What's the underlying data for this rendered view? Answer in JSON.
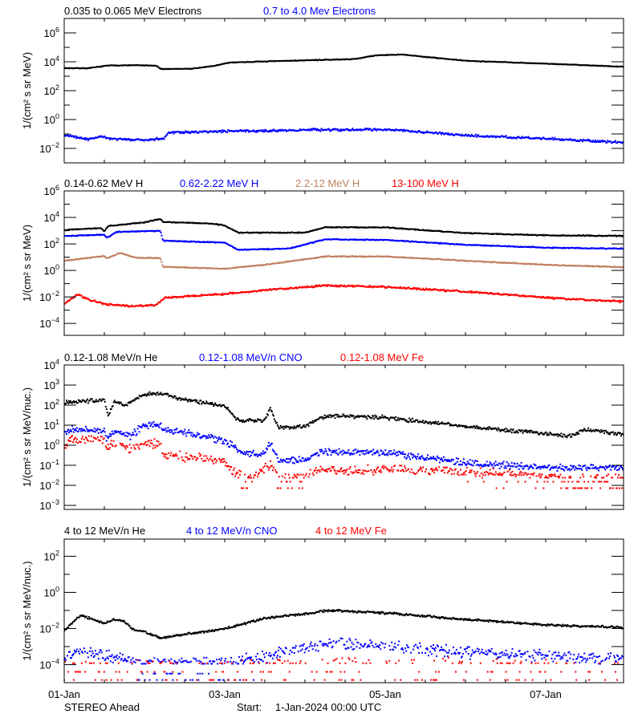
{
  "chart_data": {
    "type": "scatter",
    "value_scale": "log10",
    "xlabel_ticks": [
      "01-Jan",
      "03-Jan",
      "05-Jan",
      "07-Jan"
    ],
    "xtick_days": [
      0,
      2,
      4,
      6
    ],
    "xlim_days": [
      0,
      6.97
    ],
    "footer": {
      "spacecraft": "STEREO Ahead",
      "start_label": "Start:",
      "start_value": "1-Jan-2024 00:00 UTC"
    },
    "panels": [
      {
        "ylabel": "1/(cm² s sr MeV)",
        "ylim_log10": [
          -3,
          7
        ],
        "ytick_exponents": [
          -2,
          0,
          2,
          4,
          6
        ],
        "series": [
          {
            "name": "0.035 to 0.065 MeV Electrons",
            "color": "#000000",
            "spread": 0.02,
            "points": [
              [
                0,
                3.56
              ],
              [
                0.3,
                3.55
              ],
              [
                0.55,
                3.74
              ],
              [
                0.9,
                3.76
              ],
              [
                1.15,
                3.72
              ],
              [
                1.2,
                3.5
              ],
              [
                1.6,
                3.52
              ],
              [
                1.87,
                3.72
              ],
              [
                2.07,
                3.95
              ],
              [
                2.5,
                4.02
              ],
              [
                3.0,
                4.1
              ],
              [
                3.6,
                4.18
              ],
              [
                3.9,
                4.45
              ],
              [
                4.2,
                4.5
              ],
              [
                5,
                4.07
              ],
              [
                6,
                3.87
              ],
              [
                7,
                3.65
              ]
            ]
          },
          {
            "name": "0.7 to 4.0 Mev Electrons",
            "color": "#0000ff",
            "spread": 0.07,
            "points": [
              [
                0,
                -1.06
              ],
              [
                0.3,
                -1.4
              ],
              [
                0.45,
                -1.15
              ],
              [
                0.6,
                -1.35
              ],
              [
                1.0,
                -1.42
              ],
              [
                1.24,
                -1.3
              ],
              [
                1.3,
                -0.9
              ],
              [
                2,
                -0.82
              ],
              [
                3,
                -0.72
              ],
              [
                4.1,
                -0.7
              ],
              [
                5,
                -1.1
              ],
              [
                6,
                -1.32
              ],
              [
                7,
                -1.6
              ]
            ]
          }
        ]
      },
      {
        "ylabel": "1/(cm² s sr MeV)",
        "ylim_log10": [
          -4.9,
          6
        ],
        "ytick_exponents": [
          -4,
          -2,
          0,
          2,
          4,
          6
        ],
        "series": [
          {
            "name": "0.14-0.62 MeV H",
            "color": "#000000",
            "spread": 0.03,
            "points": [
              [
                0,
                3.05
              ],
              [
                0.45,
                3.2
              ],
              [
                0.5,
                2.95
              ],
              [
                0.55,
                3.35
              ],
              [
                1.0,
                3.62
              ],
              [
                1.2,
                3.9
              ],
              [
                1.23,
                3.66
              ],
              [
                1.8,
                3.55
              ],
              [
                2.0,
                3.4
              ],
              [
                2.17,
                2.85
              ],
              [
                3.0,
                2.85
              ],
              [
                3.25,
                3.25
              ],
              [
                4,
                3.25
              ],
              [
                5,
                2.82
              ],
              [
                6,
                2.65
              ],
              [
                7,
                2.6
              ]
            ]
          },
          {
            "name": "0.62-2.22 MeV H",
            "color": "#0000ff",
            "spread": 0.03,
            "points": [
              [
                0,
                2.6
              ],
              [
                0.5,
                2.7
              ],
              [
                0.53,
                2.45
              ],
              [
                0.65,
                2.9
              ],
              [
                1.2,
                2.99
              ],
              [
                1.23,
                2.24
              ],
              [
                2.0,
                2.1
              ],
              [
                2.17,
                1.56
              ],
              [
                2.8,
                1.64
              ],
              [
                3.25,
                2.34
              ],
              [
                4,
                2.3
              ],
              [
                5,
                1.94
              ],
              [
                6,
                1.72
              ],
              [
                7,
                1.64
              ]
            ]
          },
          {
            "name": "2.2-12 MeV H",
            "color": "#c08060",
            "spread": 0.03,
            "points": [
              [
                0,
                0.73
              ],
              [
                0.5,
                1.09
              ],
              [
                0.53,
                0.9
              ],
              [
                0.7,
                1.33
              ],
              [
                0.87,
                0.97
              ],
              [
                1.2,
                0.93
              ],
              [
                1.23,
                0.28
              ],
              [
                2.0,
                0.12
              ],
              [
                2.5,
                0.42
              ],
              [
                3.25,
                1.05
              ],
              [
                4,
                1.05
              ],
              [
                5,
                0.73
              ],
              [
                6,
                0.42
              ],
              [
                7,
                0.24
              ]
            ]
          },
          {
            "name": "13-100 MeV H",
            "color": "#ff0000",
            "spread": 0.06,
            "points": [
              [
                0,
                -2.54
              ],
              [
                0.17,
                -1.8
              ],
              [
                0.3,
                -2.2
              ],
              [
                0.5,
                -2.54
              ],
              [
                0.87,
                -2.71
              ],
              [
                1.15,
                -2.6
              ],
              [
                1.25,
                -2.05
              ],
              [
                2.0,
                -1.78
              ],
              [
                2.5,
                -1.5
              ],
              [
                3.25,
                -1.13
              ],
              [
                4,
                -1.25
              ],
              [
                5,
                -1.6
              ],
              [
                6,
                -2.06
              ],
              [
                7,
                -2.36
              ]
            ]
          }
        ]
      },
      {
        "ylabel": "1/(cm² s sr MeV/nuc.)",
        "ylim_log10": [
          -3.2,
          4
        ],
        "ytick_exponents": [
          -3,
          -2,
          -1,
          0,
          1,
          2,
          3,
          4
        ],
        "series": [
          {
            "name": "0.12-1.08 MeV/n He",
            "color": "#000000",
            "spread": 0.08,
            "points": [
              [
                0,
                2.12
              ],
              [
                0.5,
                2.26
              ],
              [
                0.52,
                1.85
              ],
              [
                0.55,
                1.5
              ],
              [
                0.63,
                2.2
              ],
              [
                0.75,
                2.0
              ],
              [
                1.0,
                2.53
              ],
              [
                1.2,
                2.6
              ],
              [
                1.5,
                2.26
              ],
              [
                2.0,
                1.95
              ],
              [
                2.17,
                1.23
              ],
              [
                2.5,
                1.26
              ],
              [
                2.57,
                1.8
              ],
              [
                2.67,
                0.86
              ],
              [
                3.0,
                0.92
              ],
              [
                3.2,
                1.39
              ],
              [
                3.33,
                1.46
              ],
              [
                4.0,
                1.39
              ],
              [
                5.0,
                0.92
              ],
              [
                6.0,
                0.59
              ],
              [
                6.3,
                0.46
              ],
              [
                6.5,
                0.79
              ],
              [
                7,
                0.53
              ]
            ]
          },
          {
            "name": "0.12-1.08 MeV/n CNO",
            "color": "#0000ff",
            "spread": 0.14,
            "points": [
              [
                0,
                0.59
              ],
              [
                0.1,
                0.79
              ],
              [
                0.5,
                0.72
              ],
              [
                0.53,
                0.33
              ],
              [
                0.63,
                0.75
              ],
              [
                0.83,
                0.45
              ],
              [
                1.0,
                1.02
              ],
              [
                1.2,
                1.0
              ],
              [
                1.23,
                0.72
              ],
              [
                1.5,
                0.66
              ],
              [
                2.0,
                0.19
              ],
              [
                2.13,
                -0.08
              ],
              [
                2.2,
                -0.42
              ],
              [
                2.5,
                -0.42
              ],
              [
                2.57,
                0.2
              ],
              [
                2.67,
                -0.75
              ],
              [
                3.0,
                -0.75
              ],
              [
                3.2,
                -0.34
              ],
              [
                4,
                -0.35
              ],
              [
                5,
                -0.89
              ],
              [
                6,
                -1.09
              ],
              [
                7,
                -1.09
              ]
            ]
          },
          {
            "name": "0.12-1.08 MeV Fe",
            "color": "#ff0000",
            "spread": 0.2,
            "floors": [
              -1.62,
              -1.82,
              -2.14
            ],
            "density": 0.85,
            "points": [
              [
                0,
                -0.15
              ],
              [
                0.1,
                0.32
              ],
              [
                0.5,
                0.32
              ],
              [
                0.53,
                -0.28
              ],
              [
                0.63,
                0.2
              ],
              [
                0.8,
                -0.2
              ],
              [
                1.0,
                0.12
              ],
              [
                1.2,
                0.05
              ],
              [
                1.23,
                -0.48
              ],
              [
                2.0,
                -0.75
              ],
              [
                2.1,
                -1.29
              ],
              [
                2.3,
                -1.7
              ],
              [
                2.57,
                -1.0
              ],
              [
                2.7,
                -1.7
              ],
              [
                3.2,
                -1.3
              ],
              [
                4,
                -1.22
              ],
              [
                5,
                -1.3
              ],
              [
                6,
                -1.6
              ],
              [
                7,
                -1.7
              ]
            ]
          }
        ]
      },
      {
        "ylabel": "1/(cm² s sr MeV/nuc.)",
        "ylim_log10": [
          -5,
          2.95
        ],
        "ytick_exponents": [
          -4,
          -2,
          0,
          2
        ],
        "series": [
          {
            "name": "4 to 12 MeV/n He",
            "color": "#000000",
            "spread": 0.05,
            "points": [
              [
                0,
                -2.1
              ],
              [
                0.2,
                -1.28
              ],
              [
                0.3,
                -1.4
              ],
              [
                0.5,
                -1.72
              ],
              [
                0.63,
                -1.5
              ],
              [
                0.73,
                -1.55
              ],
              [
                0.87,
                -2.1
              ],
              [
                1.0,
                -2.17
              ],
              [
                1.2,
                -2.54
              ],
              [
                1.5,
                -2.32
              ],
              [
                2.0,
                -2.02
              ],
              [
                2.5,
                -1.43
              ],
              [
                3.0,
                -1.2
              ],
              [
                3.3,
                -0.99
              ],
              [
                4,
                -1.14
              ],
              [
                5,
                -1.5
              ],
              [
                6,
                -1.8
              ],
              [
                7,
                -1.95
              ]
            ]
          },
          {
            "name": "4 to 12 MeV/n CNO",
            "color": "#0000ff",
            "spread": 0.28,
            "floors": [
              -3.95,
              -4.5,
              -4.85
            ],
            "density": 0.8,
            "points": [
              [
                0,
                -3.6
              ],
              [
                0.2,
                -3.3
              ],
              [
                0.7,
                -3.6
              ],
              [
                1.0,
                -3.9
              ],
              [
                2.0,
                -3.9
              ],
              [
                2.5,
                -3.6
              ],
              [
                3.0,
                -3.1
              ],
              [
                3.3,
                -2.8
              ],
              [
                4,
                -2.95
              ],
              [
                5,
                -3.35
              ],
              [
                6,
                -3.5
              ],
              [
                7,
                -3.7
              ]
            ]
          },
          {
            "name": "4 to 12 MeV Fe",
            "color": "#ff0000",
            "spread": 0.3,
            "floors": [
              -3.92,
              -4.4,
              -4.85
            ],
            "density": 0.35,
            "points": [
              [
                0,
                -4.2
              ],
              [
                3,
                -4.0
              ],
              [
                4,
                -3.9
              ],
              [
                7,
                -4.1
              ]
            ]
          }
        ]
      }
    ]
  }
}
